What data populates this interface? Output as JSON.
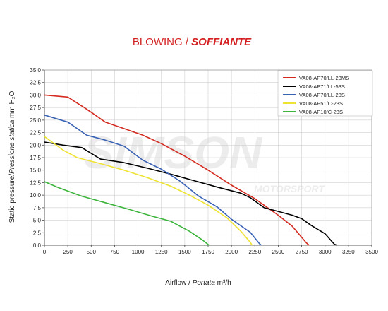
{
  "title": {
    "main": "BLOWING / ",
    "italic": "SOFFIANTE"
  },
  "watermark": {
    "big": "SIMSON",
    "small": "MOTORSPORT"
  },
  "chart_data": {
    "type": "line",
    "title": "BLOWING / SOFFIANTE",
    "xlabel": {
      "en": "Airflow",
      "sep": " / ",
      "it": "Portata",
      "unit": " m³/h"
    },
    "ylabel": {
      "en": "Static pressure",
      "sep": "/",
      "it": "Pressione statica",
      "unit": " mm H₂O"
    },
    "xlim": [
      0,
      3500
    ],
    "ylim": [
      0,
      35
    ],
    "x_ticks": [
      0,
      250,
      500,
      750,
      1000,
      1250,
      1500,
      1750,
      2000,
      2250,
      2500,
      2750,
      3000,
      3250,
      3500
    ],
    "y_ticks": [
      "0.0",
      "2.5",
      "5.0",
      "7.5",
      "10.0",
      "12.5",
      "15.0",
      "17.5",
      "20.0",
      "22.5",
      "25.0",
      "27.5",
      "30.0",
      "32.5",
      "35.0"
    ],
    "grid": true,
    "legend_position": "top-right",
    "series": [
      {
        "name": "VA08-AP70/LL-23MS",
        "color": "#d42b20",
        "points": [
          [
            0,
            30.0
          ],
          [
            250,
            29.6
          ],
          [
            450,
            27.2
          ],
          [
            650,
            24.6
          ],
          [
            850,
            23.3
          ],
          [
            1050,
            22.0
          ],
          [
            1250,
            20.3
          ],
          [
            1500,
            17.8
          ],
          [
            1750,
            15.0
          ],
          [
            2000,
            12.0
          ],
          [
            2250,
            9.3
          ],
          [
            2500,
            6.0
          ],
          [
            2650,
            3.8
          ],
          [
            2800,
            0.5
          ],
          [
            2830,
            0
          ]
        ]
      },
      {
        "name": "VA08-AP71/LL-53S",
        "color": "#000000",
        "points": [
          [
            0,
            20.6
          ],
          [
            200,
            20.0
          ],
          [
            400,
            19.5
          ],
          [
            600,
            17.2
          ],
          [
            850,
            16.5
          ],
          [
            1100,
            15.4
          ],
          [
            1350,
            14.2
          ],
          [
            1600,
            12.9
          ],
          [
            1850,
            11.6
          ],
          [
            2100,
            10.4
          ],
          [
            2200,
            9.5
          ],
          [
            2350,
            7.5
          ],
          [
            2450,
            7.0
          ],
          [
            2650,
            6.0
          ],
          [
            2750,
            5.3
          ],
          [
            2850,
            4.0
          ],
          [
            3000,
            2.3
          ],
          [
            3100,
            0.2
          ],
          [
            3130,
            0
          ]
        ]
      },
      {
        "name": "VA08-AP70/LL-23S",
        "color": "#3a62b5",
        "points": [
          [
            0,
            26.0
          ],
          [
            250,
            24.6
          ],
          [
            450,
            22.0
          ],
          [
            650,
            21.0
          ],
          [
            850,
            19.8
          ],
          [
            1050,
            17.0
          ],
          [
            1250,
            15.2
          ],
          [
            1450,
            12.8
          ],
          [
            1650,
            9.8
          ],
          [
            1850,
            7.6
          ],
          [
            2000,
            5.2
          ],
          [
            2200,
            2.6
          ],
          [
            2300,
            0.3
          ],
          [
            2320,
            0
          ]
        ]
      },
      {
        "name": "VA08-AP51/C-23S",
        "color": "#eee232",
        "points": [
          [
            0,
            21.7
          ],
          [
            200,
            19.0
          ],
          [
            350,
            17.5
          ],
          [
            600,
            16.3
          ],
          [
            850,
            15.0
          ],
          [
            1100,
            13.5
          ],
          [
            1350,
            11.8
          ],
          [
            1550,
            10.0
          ],
          [
            1750,
            8.0
          ],
          [
            1950,
            5.5
          ],
          [
            2100,
            2.8
          ],
          [
            2200,
            0.6
          ],
          [
            2220,
            0
          ]
        ]
      },
      {
        "name": "VA08-AP10/C-23S",
        "color": "#3cb53c",
        "points": [
          [
            0,
            12.7
          ],
          [
            150,
            11.5
          ],
          [
            400,
            9.8
          ],
          [
            650,
            8.5
          ],
          [
            900,
            7.2
          ],
          [
            1150,
            5.8
          ],
          [
            1350,
            4.8
          ],
          [
            1550,
            2.8
          ],
          [
            1700,
            0.9
          ],
          [
            1760,
            0
          ]
        ]
      }
    ]
  }
}
